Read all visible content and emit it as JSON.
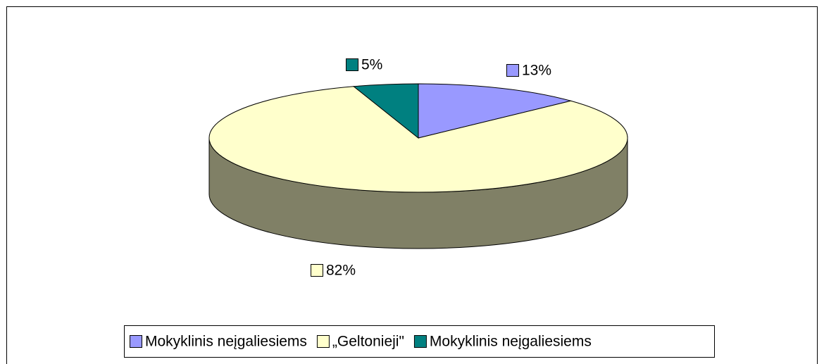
{
  "chart_data": {
    "type": "pie",
    "categories": [
      "Mokyklinis neįgaliesiems",
      "„Geltonieji\"",
      "Mokyklinis neįgaliesiems"
    ],
    "values": [
      13,
      82,
      5
    ],
    "value_labels": [
      "13%",
      "82%",
      "5%"
    ],
    "colors": [
      "#9999ff",
      "#ffffcc",
      "#008080"
    ],
    "legend": "bottom"
  }
}
